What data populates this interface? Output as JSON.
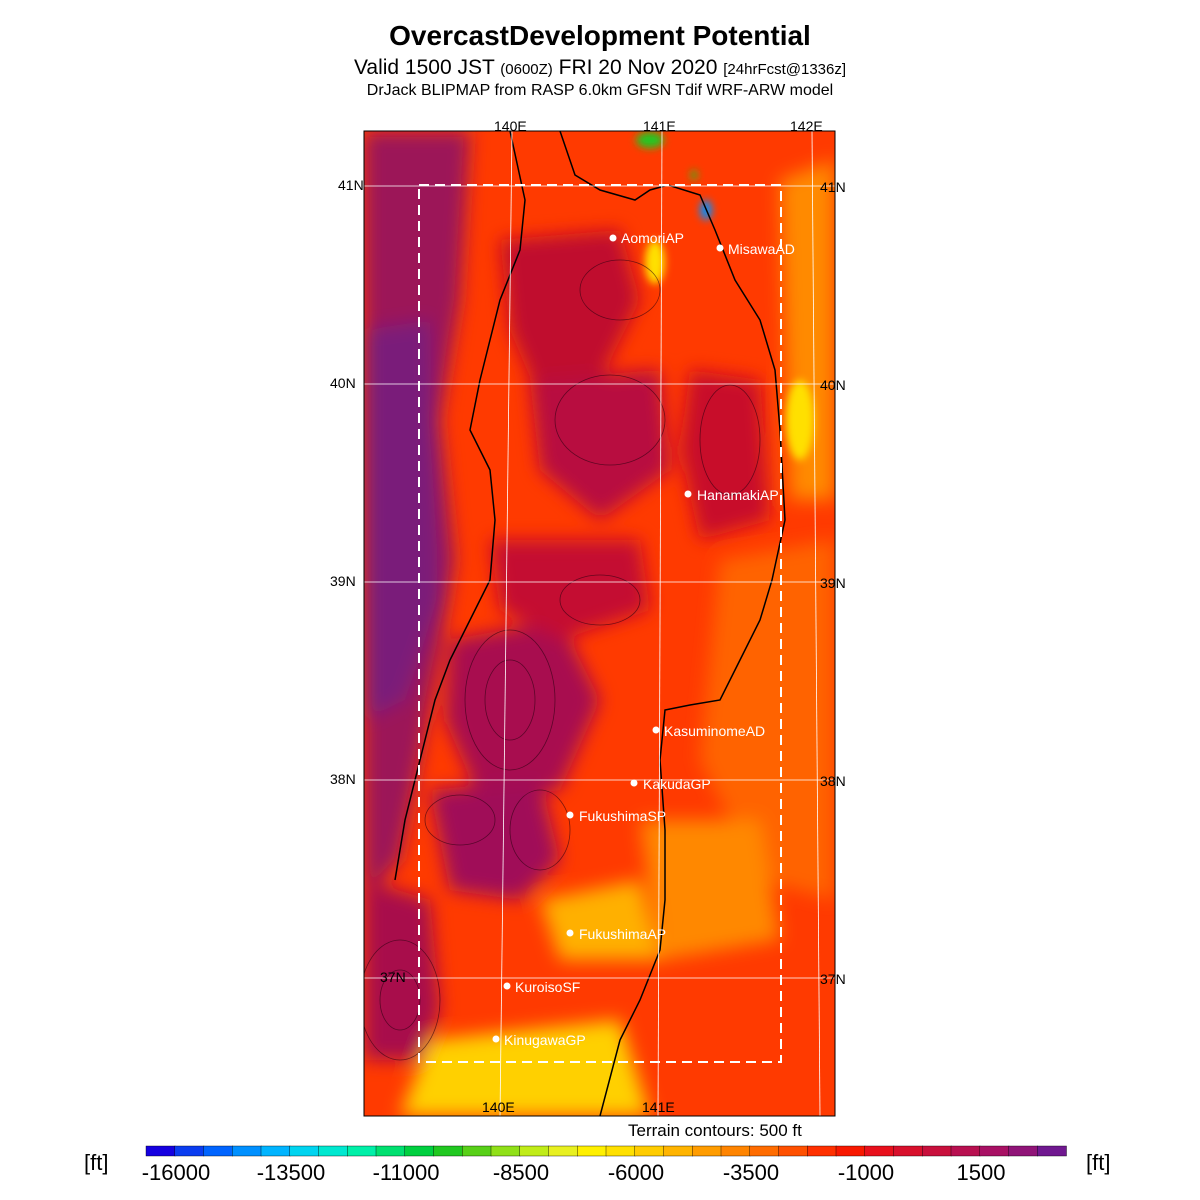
{
  "title": "OvercastDevelopment Potential",
  "subtitle": {
    "valid_prefix": "Valid 1500 JST",
    "utc": "(0600Z)",
    "date": "FRI 20 Nov 2020",
    "forecast": "[24hrFcst@1336z]"
  },
  "model_line": "DrJack BLIPMAP from RASP 6.0km GFSN Tdif WRF-ARW model",
  "map": {
    "lon_labels_top": [
      "140E",
      "141E",
      "142E"
    ],
    "lon_labels_bottom": [
      "140E",
      "141E"
    ],
    "lat_labels_left": [
      "41N",
      "40N",
      "39N",
      "38N",
      "37N"
    ],
    "lat_labels_right": [
      "41N",
      "40N",
      "39N",
      "38N",
      "37N"
    ],
    "sites": [
      {
        "name": "AomoriAP"
      },
      {
        "name": "MisawaAD"
      },
      {
        "name": "HanamakiAP"
      },
      {
        "name": "KasuminomeAD"
      },
      {
        "name": "KakudaGP"
      },
      {
        "name": "FukushimaSP"
      },
      {
        "name": "FukushimaAP"
      },
      {
        "name": "KuroisoSF"
      },
      {
        "name": "KinugawaGP"
      }
    ]
  },
  "terrain_note": "Terrain contours: 500 ft",
  "legend": {
    "unit": "[ft]",
    "ticks": [
      "-16000",
      "-13500",
      "-11000",
      "-8500",
      "-6000",
      "-3500",
      "-1000",
      "1500"
    ],
    "colors": [
      "#1500e0",
      "#0a3cf0",
      "#0064ff",
      "#0090ff",
      "#00b4ff",
      "#00d4f0",
      "#00e8d0",
      "#00f0a8",
      "#00e070",
      "#00d040",
      "#20c820",
      "#58d018",
      "#90e018",
      "#c0ec18",
      "#e8f020",
      "#fff000",
      "#ffe000",
      "#ffcc00",
      "#ffb400",
      "#ff9c00",
      "#ff8400",
      "#ff6c00",
      "#ff5000",
      "#ff3000",
      "#f81800",
      "#e8101c",
      "#d8102c",
      "#c8103c",
      "#b81050",
      "#a81064",
      "#901478",
      "#701890"
    ]
  }
}
